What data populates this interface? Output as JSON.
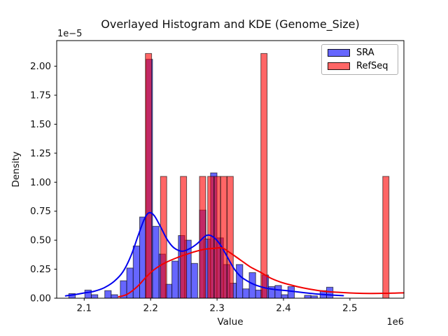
{
  "chart_data": {
    "type": "histogram+kde overlay",
    "title": "Overlayed Histogram and KDE (Genome_Size)",
    "xlabel": "Value",
    "ylabel": "Density",
    "x_offset_label": "1e6",
    "y_offset_label": "1e−5",
    "x_unit": "values expressed in 1e6",
    "y_unit": "densities expressed in 1e-5",
    "x_ticks": {
      "values": [
        2.1,
        2.2,
        2.3,
        2.4,
        2.5
      ],
      "labels": [
        "2.1",
        "2.2",
        "2.3",
        "2.4",
        "2.5"
      ]
    },
    "y_ticks": {
      "values": [
        0.0,
        0.25,
        0.5,
        0.75,
        1.0,
        1.25,
        1.5,
        1.75,
        2.0
      ],
      "labels": [
        "0.00",
        "0.25",
        "0.50",
        "0.75",
        "1.00",
        "1.25",
        "1.50",
        "1.75",
        "2.00"
      ]
    },
    "x_range": [
      2.0586,
      2.5813
    ],
    "y_range": [
      0,
      2.221
    ],
    "grid": false,
    "legend": {
      "position": "upper right",
      "entries": [
        {
          "label": "SRA",
          "color": "#6666FF"
        },
        {
          "label": "RefSeq",
          "color": "#FF6666"
        }
      ]
    },
    "series": [
      {
        "name": "SRA",
        "kind": "histogram",
        "fill": "#6666FF",
        "edge": "rgba(0,0,0,0.62)",
        "bin_width": 0.0097,
        "bars_x_h": [
          [
            2.0768,
            0.04
          ],
          [
            2.101,
            0.07
          ],
          [
            2.1107,
            0.03
          ],
          [
            2.131,
            0.065
          ],
          [
            2.1407,
            0.03
          ],
          [
            2.1544,
            0.15
          ],
          [
            2.1641,
            0.26
          ],
          [
            2.1738,
            0.45
          ],
          [
            2.1835,
            0.7
          ],
          [
            2.1932,
            2.06
          ],
          [
            2.2029,
            0.62
          ],
          [
            2.2126,
            0.38
          ],
          [
            2.2223,
            0.12
          ],
          [
            2.232,
            0.32
          ],
          [
            2.2417,
            0.54
          ],
          [
            2.2514,
            0.5
          ],
          [
            2.2611,
            0.3
          ],
          [
            2.2736,
            0.76
          ],
          [
            2.2805,
            0.51
          ],
          [
            2.2902,
            1.08
          ],
          [
            2.2999,
            0.52
          ],
          [
            2.3096,
            0.29
          ],
          [
            2.3193,
            0.13
          ],
          [
            2.329,
            0.29
          ],
          [
            2.3387,
            0.08
          ],
          [
            2.3484,
            0.22
          ],
          [
            2.3581,
            0.07
          ],
          [
            2.3678,
            0.2
          ],
          [
            2.3775,
            0.1
          ],
          [
            2.3872,
            0.11
          ],
          [
            2.3969,
            0.03
          ],
          [
            2.4066,
            0.1
          ],
          [
            2.4316,
            0.025
          ],
          [
            2.4413,
            0.02
          ],
          [
            2.4551,
            0.065
          ],
          [
            2.4648,
            0.095
          ]
        ]
      },
      {
        "name": "RefSeq",
        "kind": "histogram",
        "fill": "rgba(255,0,0,0.6)",
        "edge": "rgba(0,0,0,0.6)",
        "bin_width": 0.0094,
        "bars_x_h": [
          [
            2.1921,
            2.11
          ],
          [
            2.2149,
            1.05
          ],
          [
            2.2448,
            1.05
          ],
          [
            2.2736,
            1.05
          ],
          [
            2.2859,
            1.05
          ],
          [
            2.2957,
            1.05
          ],
          [
            2.3054,
            1.05
          ],
          [
            2.3151,
            1.05
          ],
          [
            2.366,
            2.11
          ],
          [
            2.5494,
            1.05
          ]
        ]
      },
      {
        "name": "SRA KDE",
        "kind": "line",
        "color": "#0000EE",
        "width": 2,
        "points_x_y": [
          [
            2.072,
            0.02
          ],
          [
            2.085,
            0.03
          ],
          [
            2.1,
            0.045
          ],
          [
            2.115,
            0.06
          ],
          [
            2.13,
            0.09
          ],
          [
            2.145,
            0.145
          ],
          [
            2.158,
            0.225
          ],
          [
            2.17,
            0.36
          ],
          [
            2.18,
            0.52
          ],
          [
            2.19,
            0.675
          ],
          [
            2.197,
            0.735
          ],
          [
            2.205,
            0.715
          ],
          [
            2.215,
            0.615
          ],
          [
            2.225,
            0.505
          ],
          [
            2.235,
            0.435
          ],
          [
            2.247,
            0.405
          ],
          [
            2.258,
            0.425
          ],
          [
            2.27,
            0.47
          ],
          [
            2.28,
            0.525
          ],
          [
            2.287,
            0.545
          ],
          [
            2.296,
            0.52
          ],
          [
            2.305,
            0.46
          ],
          [
            2.315,
            0.36
          ],
          [
            2.325,
            0.26
          ],
          [
            2.335,
            0.19
          ],
          [
            2.345,
            0.15
          ],
          [
            2.355,
            0.12
          ],
          [
            2.365,
            0.1
          ],
          [
            2.378,
            0.082
          ],
          [
            2.392,
            0.072
          ],
          [
            2.405,
            0.065
          ],
          [
            2.43,
            0.048
          ],
          [
            2.45,
            0.036
          ],
          [
            2.47,
            0.028
          ],
          [
            2.49,
            0.022
          ]
        ]
      },
      {
        "name": "RefSeq KDE",
        "kind": "line",
        "color": "#F20000",
        "width": 2,
        "points_x_y": [
          [
            2.152,
            0.012
          ],
          [
            2.165,
            0.035
          ],
          [
            2.18,
            0.1
          ],
          [
            2.192,
            0.175
          ],
          [
            2.205,
            0.245
          ],
          [
            2.22,
            0.3
          ],
          [
            2.24,
            0.35
          ],
          [
            2.26,
            0.39
          ],
          [
            2.28,
            0.42
          ],
          [
            2.295,
            0.43
          ],
          [
            2.308,
            0.432
          ],
          [
            2.32,
            0.39
          ],
          [
            2.335,
            0.33
          ],
          [
            2.35,
            0.27
          ],
          [
            2.365,
            0.225
          ],
          [
            2.38,
            0.175
          ],
          [
            2.395,
            0.14
          ],
          [
            2.41,
            0.115
          ],
          [
            2.43,
            0.088
          ],
          [
            2.45,
            0.068
          ],
          [
            2.47,
            0.055
          ],
          [
            2.49,
            0.048
          ],
          [
            2.51,
            0.043
          ],
          [
            2.53,
            0.041
          ],
          [
            2.55,
            0.042
          ],
          [
            2.565,
            0.044
          ],
          [
            2.581,
            0.046
          ]
        ]
      }
    ]
  }
}
